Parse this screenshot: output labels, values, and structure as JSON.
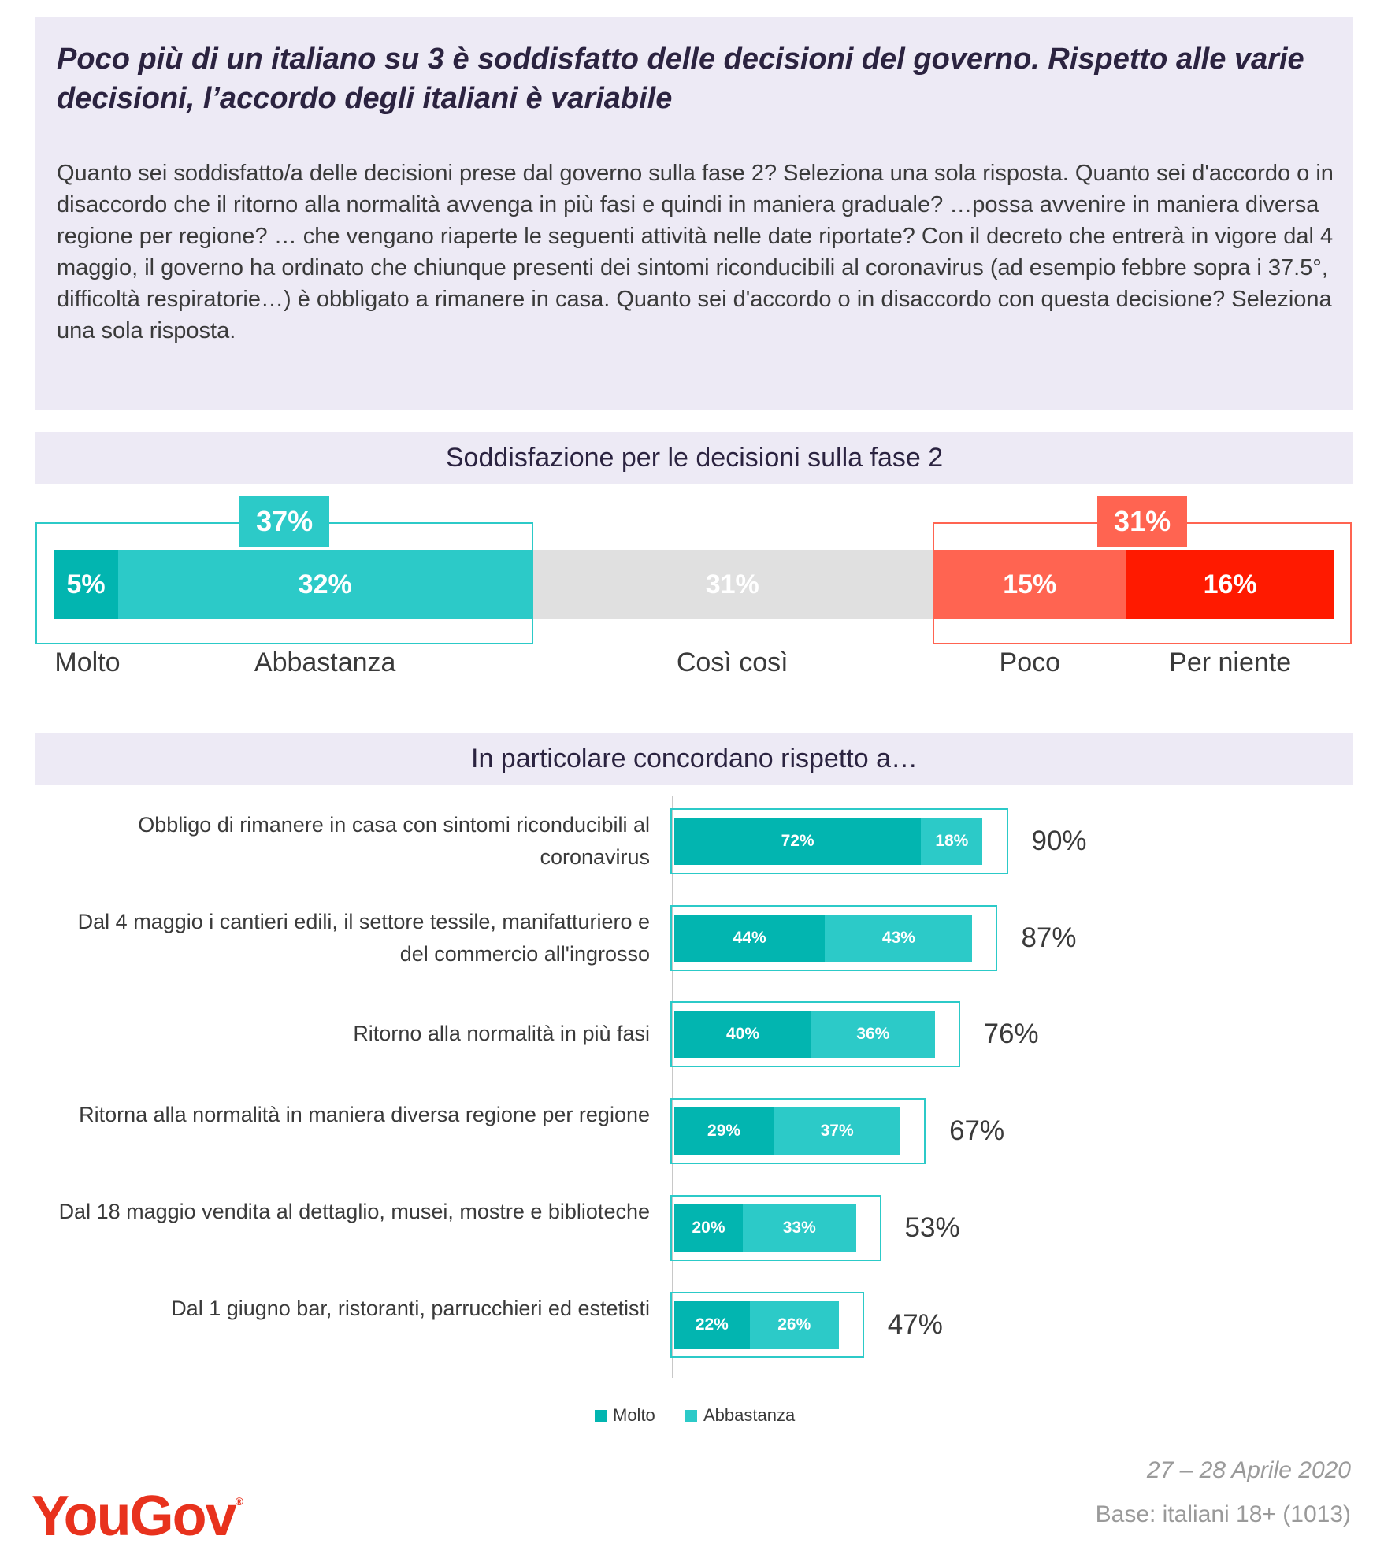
{
  "title": "Poco più di un italiano su 3 è soddisfatto delle decisioni del governo. Rispetto alle varie decisioni, l’accordo degli italiani è variabile",
  "question": "Quanto sei soddisfatto/a delle decisioni prese dal governo sulla fase 2? Seleziona una sola risposta. Quanto sei d'accordo o in disaccordo che il ritorno alla normalità avvenga in più fasi e quindi in maniera graduale? …possa avvenire in maniera diversa regione per regione? … che vengano riaperte le seguenti attività nelle date riportate? Con il decreto che entrerà in vigore dal 4 maggio, il governo ha ordinato che chiunque presenti dei sintomi riconducibili al coronavirus (ad esempio febbre sopra i 37.5°, difficoltà respiratorie…) è obbligato a rimanere in casa. Quanto sei d'accordo o in disaccordo con questa decisione? Seleziona una sola risposta.",
  "colors": {
    "molto": "#02b5b0",
    "abbastanza": "#2ccac8",
    "cosi": "#e0e0e0",
    "poco": "#ff6451",
    "per_niente": "#ff1a00"
  },
  "chart_data": [
    {
      "type": "bar",
      "orientation": "horizontal-stacked",
      "title": "Soddisfazione per le decisioni sulla fase 2",
      "categories": [
        "Molto",
        "Abbastanza",
        "Così così",
        "Poco",
        "Per niente"
      ],
      "values": [
        5,
        32,
        31,
        15,
        16
      ],
      "value_labels": [
        "5%",
        "32%",
        "31%",
        "15%",
        "16%"
      ],
      "groups": [
        {
          "label": "37%",
          "members": [
            "Molto",
            "Abbastanza"
          ],
          "color": "#2ccac8"
        },
        {
          "label": "31%",
          "members": [
            "Poco",
            "Per niente"
          ],
          "color": "#ff6451"
        }
      ]
    },
    {
      "type": "bar",
      "orientation": "horizontal-stacked",
      "title": "In particolare concordano rispetto a…",
      "categories": [
        "Obbligo di rimanere in casa con sintomi riconducibili al coronavirus",
        "Dal 4 maggio i cantieri edili, il settore tessile, manifatturiero e del commercio all'ingrosso",
        "Ritorno alla normalità in più fasi",
        "Ritorna alla normalità in maniera diversa regione per regione",
        "Dal 18 maggio vendita al dettaglio, musei, mostre e biblioteche",
        "Dal 1 giugno bar, ristoranti, parrucchieri ed estetisti"
      ],
      "series": [
        {
          "name": "Molto",
          "values": [
            72,
            44,
            40,
            29,
            20,
            22
          ],
          "labels": [
            "72%",
            "44%",
            "40%",
            "29%",
            "20%",
            "22%"
          ]
        },
        {
          "name": "Abbastanza",
          "values": [
            18,
            43,
            36,
            37,
            33,
            26
          ],
          "labels": [
            "18%",
            "43%",
            "36%",
            "37%",
            "33%",
            "26%"
          ]
        }
      ],
      "totals": [
        "90%",
        "87%",
        "76%",
        "67%",
        "53%",
        "47%"
      ],
      "legend": [
        "Molto",
        "Abbastanza"
      ],
      "legend_position": "bottom"
    }
  ],
  "footer": {
    "date": "27 – 28 Aprile 2020",
    "base": "Base: italiani 18+ (1013)",
    "logo": "YouGov",
    "logo_mark": "®"
  }
}
